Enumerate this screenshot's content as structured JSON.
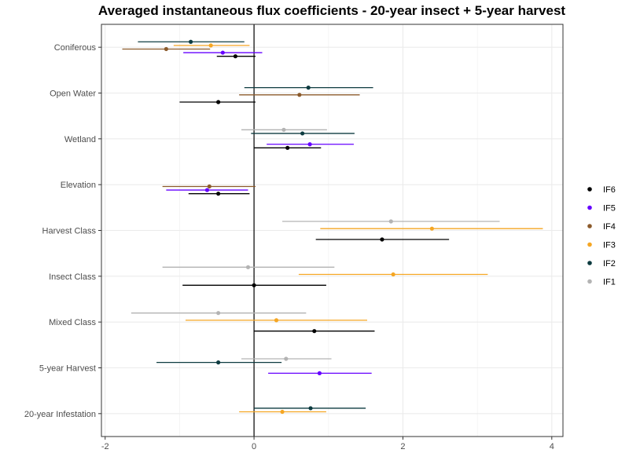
{
  "chart_data": {
    "type": "forest",
    "title": "Averaged instantaneous flux coefficients - 20-year insect + 5-year harvest",
    "xlabel": "",
    "ylabel": "",
    "xlim": [
      -2,
      4.2
    ],
    "xticks": [
      -2,
      0,
      2,
      4
    ],
    "grid": true,
    "legend_position": "right",
    "categories": [
      "Coniferous",
      "Open Water",
      "Wetland",
      "Elevation",
      "Harvest Class",
      "Insect Class",
      "Mixed Class",
      "5-year Harvest",
      "20-year Infestation"
    ],
    "series": [
      {
        "name": "IF6",
        "color": "#000000",
        "points": [
          {
            "category": "Coniferous",
            "estimate": -0.25,
            "low": -0.5,
            "high": 0.02
          },
          {
            "category": "Open Water",
            "estimate": -0.48,
            "low": -1.0,
            "high": 0.02
          },
          {
            "category": "Wetland",
            "estimate": 0.45,
            "low": 0.0,
            "high": 0.9
          },
          {
            "category": "Elevation",
            "estimate": -0.48,
            "low": -0.88,
            "high": -0.06
          },
          {
            "category": "Harvest Class",
            "estimate": 1.72,
            "low": 0.83,
            "high": 2.62
          },
          {
            "category": "Insect Class",
            "estimate": 0.0,
            "low": -0.96,
            "high": 0.97
          },
          {
            "category": "Mixed Class",
            "estimate": 0.81,
            "low": 0.0,
            "high": 1.62
          }
        ]
      },
      {
        "name": "IF5",
        "color": "#6600ff",
        "points": [
          {
            "category": "Coniferous",
            "estimate": -0.42,
            "low": -0.95,
            "high": 0.11
          },
          {
            "category": "Wetland",
            "estimate": 0.75,
            "low": 0.17,
            "high": 1.34
          },
          {
            "category": "Elevation",
            "estimate": -0.63,
            "low": -1.18,
            "high": -0.08
          },
          {
            "category": "5-year Harvest",
            "estimate": 0.88,
            "low": 0.19,
            "high": 1.58
          }
        ]
      },
      {
        "name": "IF4",
        "color": "#8b5a2b",
        "points": [
          {
            "category": "Coniferous",
            "estimate": -1.18,
            "low": -1.77,
            "high": -0.59
          },
          {
            "category": "Open Water",
            "estimate": 0.61,
            "low": -0.2,
            "high": 1.42
          },
          {
            "category": "Elevation",
            "estimate": -0.6,
            "low": -1.23,
            "high": 0.02
          }
        ]
      },
      {
        "name": "IF3",
        "color": "#f5a623",
        "points": [
          {
            "category": "Coniferous",
            "estimate": -0.58,
            "low": -1.08,
            "high": -0.06
          },
          {
            "category": "Harvest Class",
            "estimate": 2.39,
            "low": 0.89,
            "high": 3.88
          },
          {
            "category": "Insect Class",
            "estimate": 1.87,
            "low": 0.6,
            "high": 3.14
          },
          {
            "category": "Mixed Class",
            "estimate": 0.3,
            "low": -0.92,
            "high": 1.52
          },
          {
            "category": "20-year Infestation",
            "estimate": 0.38,
            "low": -0.2,
            "high": 0.97
          }
        ]
      },
      {
        "name": "IF2",
        "color": "#0d3b40",
        "points": [
          {
            "category": "Coniferous",
            "estimate": -0.85,
            "low": -1.56,
            "high": -0.13
          },
          {
            "category": "Open Water",
            "estimate": 0.73,
            "low": -0.13,
            "high": 1.6
          },
          {
            "category": "Wetland",
            "estimate": 0.65,
            "low": -0.04,
            "high": 1.35
          },
          {
            "category": "5-year Harvest",
            "estimate": -0.48,
            "low": -1.31,
            "high": 0.37
          },
          {
            "category": "20-year Infestation",
            "estimate": 0.76,
            "low": 0.0,
            "high": 1.5
          }
        ]
      },
      {
        "name": "IF1",
        "color": "#b3b3b3",
        "points": [
          {
            "category": "Wetland",
            "estimate": 0.4,
            "low": -0.17,
            "high": 0.98
          },
          {
            "category": "Harvest Class",
            "estimate": 1.84,
            "low": 0.38,
            "high": 3.3
          },
          {
            "category": "Insect Class",
            "estimate": -0.08,
            "low": -1.23,
            "high": 1.08
          },
          {
            "category": "Mixed Class",
            "estimate": -0.48,
            "low": -1.65,
            "high": 0.7
          },
          {
            "category": "5-year Harvest",
            "estimate": 0.43,
            "low": -0.17,
            "high": 1.04
          }
        ]
      }
    ]
  }
}
